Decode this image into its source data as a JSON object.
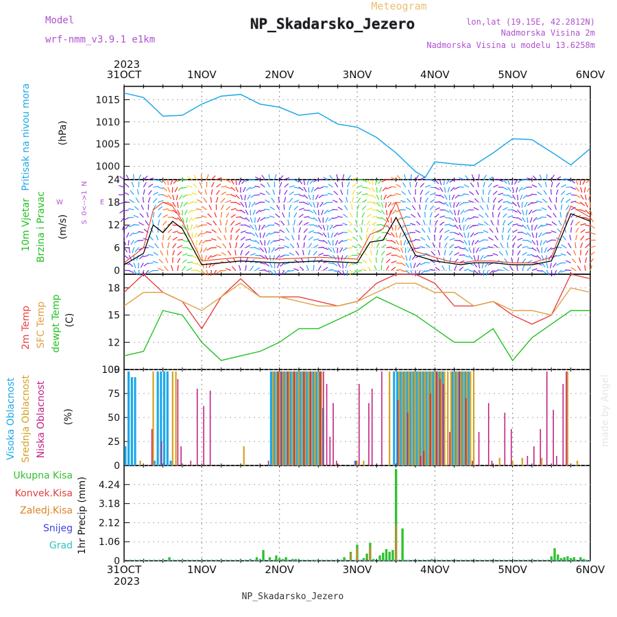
{
  "header": {
    "meteogram_label": "Meteogram",
    "station_title": "NP_Skadarsko_Jezero",
    "model_label": "Model",
    "model_name": "wrf-nmm_v3.9.1 e1km",
    "lonlat": "lon,lat (19.15E, 42.2812N)",
    "elevation": "Nadmorska Visina 2m",
    "model_elevation": "Nadmorska Visina u modelu 13.6258m",
    "footer_station": "NP_Skadarsko_Jezero",
    "watermark": "made by Angel"
  },
  "colors": {
    "pressure": "#1ca8e8",
    "wind_speed": "#000000",
    "gust": "#e04020",
    "temp_2m": "#e84040",
    "temp_sfc": "#e0a040",
    "dewpoint": "#20c020",
    "cloud_high": "#1ca8e8",
    "cloud_mid": "#d4a020",
    "cloud_low": "#c02080",
    "precip_total": "#30c030",
    "precip_conv": "#e04040",
    "precip_strat": "#e08020",
    "snow": "#4040e0",
    "hail": "#30c0c0",
    "labels_purple": "#b050d0"
  },
  "chart_data": [
    {
      "type": "line",
      "id": "pressure",
      "title": "Pritisak na nivou mora",
      "ylabel": "(hPa)",
      "ylim": [
        997,
        1018
      ],
      "yticks": [
        1000,
        1005,
        1010,
        1015
      ],
      "x_start": "2023-10-31T00",
      "x_unit": "hours",
      "xtick_labels": [
        "31OCT",
        "1NOV",
        "2NOV",
        "3NOV",
        "4NOV",
        "5NOV",
        "6NOV"
      ],
      "year_label": "2023",
      "grid": true,
      "series": [
        {
          "x": [
            0,
            6,
            12,
            18,
            24,
            30,
            36,
            42,
            48,
            54,
            60,
            66,
            72,
            78,
            84,
            90,
            93,
            96,
            102,
            108,
            114,
            120,
            126,
            132,
            138,
            144
          ],
          "values": [
            1016.5,
            1015.5,
            1011.3,
            1011.5,
            1014.0,
            1015.8,
            1016.2,
            1014.0,
            1013.3,
            1011.5,
            1012.0,
            1009.5,
            1008.8,
            1006.5,
            1003.0,
            998.8,
            997.5,
            1001.0,
            1000.5,
            1000.2,
            1003.0,
            1006.2,
            1006.0,
            1003.2,
            1000.3,
            1004.0
          ]
        }
      ]
    },
    {
      "type": "line",
      "id": "wind",
      "title": "10m Vjetar",
      "title2": "Brzina i Pravac",
      "ylabel": "(m/s)",
      "ylim": [
        -1,
        24
      ],
      "yticks": [
        0,
        6,
        12,
        18,
        24
      ],
      "compass": [
        "N",
        "E",
        "W",
        "S"
      ],
      "compass_note": "0<-->1",
      "grid": true,
      "series": [
        {
          "name": "speed",
          "x": [
            0,
            6,
            9,
            12,
            15,
            18,
            24,
            30,
            36,
            48,
            60,
            72,
            76,
            80,
            84,
            90,
            96,
            100,
            104,
            108,
            114,
            120,
            126,
            132,
            138,
            144
          ],
          "values": [
            1.5,
            4.5,
            12,
            10,
            13,
            11,
            1.5,
            2.0,
            2.5,
            2.0,
            2.5,
            2.0,
            7.5,
            8.0,
            14.0,
            4.0,
            2.5,
            2.0,
            1.5,
            2.0,
            2.0,
            1.5,
            1.5,
            2.5,
            15.0,
            13.0
          ]
        },
        {
          "name": "gust",
          "x": [
            0,
            6,
            9,
            12,
            15,
            18,
            24,
            30,
            36,
            48,
            60,
            72,
            76,
            80,
            84,
            90,
            96,
            100,
            104,
            108,
            114,
            120,
            126,
            132,
            138,
            144
          ],
          "values": [
            2,
            6,
            16,
            18,
            17,
            13,
            2.5,
            3.0,
            3.5,
            3.0,
            3.5,
            3.0,
            9.5,
            11.0,
            18.0,
            5.0,
            3.5,
            2.5,
            2.0,
            2.5,
            2.5,
            2.0,
            2.0,
            3.5,
            17.0,
            14.0
          ]
        }
      ]
    },
    {
      "type": "line",
      "id": "temperature",
      "labels": [
        "2m Temp",
        "SFC Temp",
        "dewpt Temp"
      ],
      "ylabel": "(C)",
      "ylim": [
        9,
        19.5
      ],
      "yticks": [
        9,
        12,
        15,
        18
      ],
      "grid": true,
      "series": [
        {
          "name": "2m Temp",
          "x": [
            0,
            6,
            12,
            18,
            24,
            30,
            36,
            42,
            48,
            54,
            60,
            66,
            72,
            78,
            84,
            90,
            96,
            102,
            108,
            114,
            120,
            126,
            132,
            138,
            144
          ],
          "values": [
            17.5,
            19.5,
            17.5,
            16.5,
            13.5,
            17.0,
            19.0,
            17.0,
            17.0,
            17.0,
            16.5,
            16.0,
            16.5,
            18.5,
            19.5,
            19.5,
            18.5,
            16.0,
            16.0,
            16.5,
            15.0,
            14.0,
            15.0,
            19.5,
            19.0
          ]
        },
        {
          "name": "SFC Temp",
          "x": [
            0,
            6,
            12,
            18,
            24,
            30,
            36,
            42,
            48,
            54,
            60,
            66,
            72,
            78,
            84,
            90,
            96,
            102,
            108,
            114,
            120,
            126,
            132,
            138,
            144
          ],
          "values": [
            16.0,
            17.5,
            17.5,
            16.5,
            15.5,
            17.0,
            18.5,
            17.0,
            17.0,
            16.5,
            16.0,
            16.0,
            16.5,
            17.5,
            18.5,
            18.5,
            17.5,
            17.5,
            16.0,
            16.5,
            15.5,
            15.5,
            15.0,
            18.0,
            17.5
          ]
        },
        {
          "name": "dewpt Temp",
          "x": [
            0,
            6,
            12,
            18,
            24,
            30,
            36,
            42,
            48,
            54,
            60,
            66,
            72,
            78,
            84,
            90,
            96,
            102,
            108,
            114,
            120,
            126,
            132,
            138,
            144
          ],
          "values": [
            10.5,
            11.0,
            15.5,
            15.0,
            12.0,
            10.0,
            10.5,
            11.0,
            12.0,
            13.5,
            13.5,
            14.5,
            15.5,
            17.0,
            16.0,
            15.0,
            13.5,
            12.0,
            12.0,
            13.5,
            10.0,
            12.5,
            14.0,
            15.5,
            15.5
          ]
        }
      ]
    },
    {
      "type": "bar",
      "id": "cloud",
      "labels": [
        "Visoka Oblacnost",
        "Srednja Oblacnost",
        "Niska Oblacnost"
      ],
      "ylabel": "(%)",
      "ylim": [
        0,
        100
      ],
      "yticks": [
        0,
        25,
        50,
        75,
        100
      ],
      "grid": true,
      "series": [
        {
          "name": "Visoka Oblacnost",
          "x": [
            1,
            2,
            3,
            4,
            10,
            11,
            12,
            13,
            14,
            15,
            46,
            47,
            48,
            49,
            50,
            51,
            52,
            53,
            54,
            55,
            56,
            57,
            58,
            59,
            60,
            61,
            62,
            72,
            84,
            85,
            86,
            87,
            88,
            89,
            90,
            91,
            92,
            93,
            94,
            95,
            96,
            97,
            98,
            99,
            102,
            103,
            104,
            105,
            106,
            107
          ],
          "values": [
            20,
            98,
            92,
            92,
            5,
            98,
            98,
            98,
            98,
            5,
            98,
            98,
            98,
            98,
            98,
            98,
            98,
            98,
            98,
            98,
            98,
            98,
            98,
            98,
            98,
            98,
            60,
            5,
            98,
            98,
            98,
            98,
            98,
            98,
            98,
            98,
            98,
            98,
            98,
            98,
            98,
            98,
            98,
            98,
            98,
            98,
            98,
            98,
            98,
            98
          ]
        },
        {
          "name": "Srednja Oblacnost",
          "x": [
            5,
            9,
            15,
            16,
            37,
            46,
            47,
            48,
            49,
            50,
            51,
            52,
            53,
            54,
            55,
            56,
            57,
            58,
            59,
            60,
            61,
            72,
            74,
            82,
            85,
            86,
            87,
            88,
            89,
            90,
            91,
            92,
            93,
            94,
            95,
            96,
            97,
            98,
            99,
            100,
            101,
            102,
            103,
            104,
            105,
            106,
            107,
            108,
            116,
            120,
            123,
            129,
            137,
            140
          ],
          "values": [
            5,
            98,
            98,
            98,
            20,
            98,
            98,
            98,
            98,
            98,
            98,
            98,
            98,
            98,
            98,
            98,
            98,
            98,
            98,
            98,
            98,
            5,
            5,
            98,
            98,
            98,
            98,
            98,
            98,
            98,
            98,
            98,
            98,
            98,
            98,
            98,
            98,
            98,
            98,
            98,
            98,
            98,
            98,
            98,
            98,
            98,
            98,
            98,
            8,
            5,
            8,
            8,
            98,
            5
          ]
        },
        {
          "name": "Niska Oblacnost",
          "x": [
            8,
            11,
            16,
            17,
            20,
            22,
            24,
            26,
            44,
            47,
            48,
            50,
            52,
            55,
            57,
            60,
            61,
            62,
            63,
            64,
            65,
            71,
            72,
            75,
            76,
            79,
            84,
            87,
            91,
            92,
            94,
            96,
            97,
            98,
            100,
            103,
            105,
            107,
            109,
            112,
            113,
            117,
            119,
            124,
            126,
            128,
            130,
            132,
            133,
            135,
            136
          ],
          "values": [
            38,
            25,
            90,
            20,
            5,
            80,
            62,
            78,
            5,
            98,
            98,
            98,
            98,
            98,
            98,
            98,
            98,
            85,
            30,
            65,
            5,
            5,
            85,
            65,
            80,
            98,
            68,
            55,
            10,
            15,
            75,
            98,
            90,
            85,
            35,
            98,
            70,
            5,
            35,
            65,
            5,
            55,
            38,
            10,
            20,
            38,
            98,
            58,
            10,
            85,
            98
          ]
        }
      ]
    },
    {
      "type": "bar",
      "id": "precip",
      "labels": [
        "Ukupna Kisa",
        "Konvek.Kisa",
        "Zaledj.Kisa",
        "Snijeg",
        "Grad"
      ],
      "ylabel": "1hr Precip (mm)",
      "ylim": [
        0,
        5.3
      ],
      "yticks": [
        0,
        1.06,
        2.12,
        3.18,
        4.24
      ],
      "ytick_labels": [
        "0",
        "1.06",
        "2.12",
        "3.18",
        "4.24"
      ],
      "grid": true,
      "series": [
        {
          "name": "Ukupna Kisa",
          "x": [
            14,
            39,
            41,
            43,
            45,
            47,
            48,
            49,
            50,
            52,
            53,
            59,
            68,
            70,
            72,
            74,
            75,
            76,
            77,
            79,
            80,
            81,
            82,
            83,
            84,
            86,
            87,
            88,
            95,
            132,
            133,
            134,
            135,
            136,
            137,
            138,
            139,
            141,
            142,
            143
          ],
          "values": [
            0.2,
            0.1,
            0.2,
            0.6,
            0.2,
            0.3,
            0.15,
            0.1,
            0.2,
            0.1,
            0.1,
            0.05,
            0.2,
            0.5,
            0.9,
            0.15,
            0.4,
            1.0,
            0.1,
            0.3,
            0.45,
            0.65,
            0.5,
            0.6,
            5.1,
            1.8,
            0.05,
            0.05,
            0.1,
            0.25,
            0.7,
            0.35,
            0.15,
            0.2,
            0.25,
            0.15,
            0.2,
            0.2,
            0.1,
            0.05
          ]
        },
        {
          "name": "Konvek.Kisa",
          "x": [
            70,
            72,
            75,
            76,
            84
          ],
          "values": [
            0.1,
            0.4,
            0.1,
            0.8,
            1.0
          ]
        },
        {
          "name": "Zaledj.Kisa",
          "x": [
            70,
            72,
            76,
            84
          ],
          "values": [
            0.4,
            0.7,
            0.8,
            2.0
          ]
        }
      ]
    }
  ]
}
